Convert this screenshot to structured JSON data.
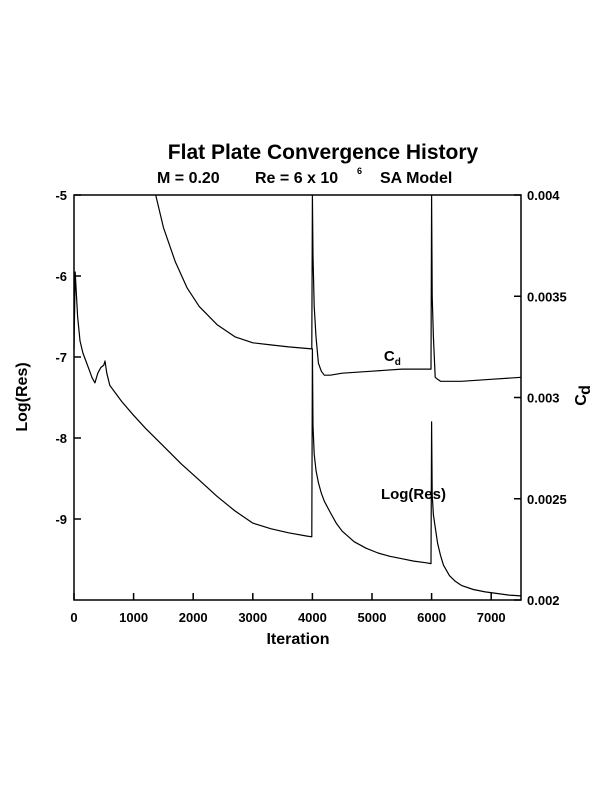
{
  "chart_data": {
    "type": "line",
    "title": "Flat Plate Convergence History",
    "subtitle": {
      "mach": "M = 0.20",
      "re_prefix": "Re = 6 x 10",
      "re_exponent": "6",
      "model": "SA Model"
    },
    "xlabel": "Iteration",
    "ylabel_left": "Log(Res)",
    "ylabel_right_main": "C",
    "ylabel_right_sub": "d",
    "xlim": [
      0,
      7500
    ],
    "ylim_left": [
      -10,
      -5
    ],
    "ylim_right": [
      0.002,
      0.004
    ],
    "x_ticks": [
      {
        "value": 0,
        "label": "0"
      },
      {
        "value": 1000,
        "label": "1000"
      },
      {
        "value": 2000,
        "label": "2000"
      },
      {
        "value": 3000,
        "label": "3000"
      },
      {
        "value": 4000,
        "label": "4000"
      },
      {
        "value": 5000,
        "label": "5000"
      },
      {
        "value": 6000,
        "label": "6000"
      },
      {
        "value": 7000,
        "label": "7000"
      }
    ],
    "y_left_ticks": [
      {
        "value": -5,
        "label": "-5"
      },
      {
        "value": -6,
        "label": "-6"
      },
      {
        "value": -7,
        "label": "-7"
      },
      {
        "value": -8,
        "label": "-8"
      },
      {
        "value": -9,
        "label": "-9"
      }
    ],
    "y_right_ticks": [
      {
        "value": 0.004,
        "label": "0.004"
      },
      {
        "value": 0.0035,
        "label": "0.0035"
      },
      {
        "value": 0.003,
        "label": "0.003"
      },
      {
        "value": 0.0025,
        "label": "0.0025"
      },
      {
        "value": 0.002,
        "label": "0.002"
      }
    ],
    "grid": false,
    "series": [
      {
        "name": "Log(Res)",
        "axis": "left",
        "x": [
          0,
          20,
          60,
          100,
          150,
          200,
          250,
          300,
          350,
          400,
          450,
          500,
          520,
          550,
          600,
          700,
          800,
          1000,
          1200,
          1500,
          1800,
          2100,
          2400,
          2700,
          3000,
          3300,
          3600,
          3900,
          3990,
          4000,
          4010,
          4030,
          4060,
          4100,
          4150,
          4200,
          4300,
          4400,
          4500,
          4700,
          4900,
          5100,
          5300,
          5500,
          5700,
          5900,
          5990,
          6000,
          6010,
          6030,
          6060,
          6100,
          6150,
          6200,
          6300,
          6400,
          6500,
          6700,
          6900,
          7100,
          7300,
          7500
        ],
        "y": [
          -6.9,
          -5.95,
          -6.5,
          -6.8,
          -6.95,
          -7.05,
          -7.15,
          -7.25,
          -7.32,
          -7.2,
          -7.13,
          -7.1,
          -7.05,
          -7.2,
          -7.35,
          -7.45,
          -7.55,
          -7.72,
          -7.88,
          -8.1,
          -8.32,
          -8.52,
          -8.72,
          -8.9,
          -9.05,
          -9.12,
          -9.17,
          -9.21,
          -9.22,
          -6.9,
          -7.85,
          -8.2,
          -8.4,
          -8.55,
          -8.68,
          -8.78,
          -8.92,
          -9.05,
          -9.15,
          -9.28,
          -9.36,
          -9.42,
          -9.46,
          -9.49,
          -9.52,
          -9.54,
          -9.55,
          -7.8,
          -8.7,
          -8.95,
          -9.1,
          -9.3,
          -9.45,
          -9.57,
          -9.7,
          -9.77,
          -9.82,
          -9.87,
          -9.9,
          -9.92,
          -9.94,
          -9.95
        ]
      },
      {
        "name": "Cd",
        "axis": "right",
        "x": [
          1370,
          1500,
          1700,
          1900,
          2100,
          2400,
          2700,
          3000,
          3300,
          3600,
          3990,
          4000,
          4010,
          4030,
          4060,
          4100,
          4150,
          4200,
          4300,
          4500,
          5000,
          5500,
          5990,
          6000,
          6010,
          6030,
          6060,
          6100,
          6150,
          6200,
          6500,
          7000,
          7500
        ],
        "y": [
          0.004,
          0.00384,
          0.00367,
          0.00354,
          0.00345,
          0.00336,
          0.0033,
          0.00327,
          0.00326,
          0.00325,
          0.00324,
          0.004,
          0.0037,
          0.00345,
          0.0033,
          0.00317,
          0.00313,
          0.00311,
          0.00311,
          0.00312,
          0.00313,
          0.00314,
          0.00314,
          0.004,
          0.0035,
          0.0033,
          0.0031,
          0.00309,
          0.00308,
          0.00308,
          0.00308,
          0.00309,
          0.0031
        ]
      }
    ],
    "annotations": [
      {
        "series": "Cd",
        "main": "C",
        "sub": "d",
        "x": 5200,
        "y_axis": "right",
        "y": 0.00318
      },
      {
        "series": "Log(Res)",
        "main": "Log(Res)",
        "sub": "",
        "x": 5150,
        "y_axis": "left",
        "y": -8.75
      }
    ]
  }
}
